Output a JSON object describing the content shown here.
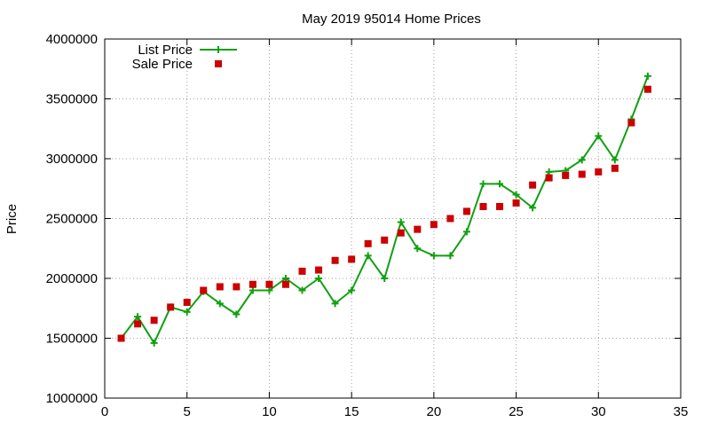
{
  "chart_data": {
    "type": "line",
    "title": "May 2019 95014 Home Prices",
    "xlabel": "",
    "ylabel": "Price",
    "xlim": [
      0,
      35
    ],
    "ylim": [
      1000000,
      4000000
    ],
    "x_ticks": [
      0,
      5,
      10,
      15,
      20,
      25,
      30,
      35
    ],
    "y_ticks": [
      1000000,
      1500000,
      2000000,
      2500000,
      3000000,
      3500000,
      4000000
    ],
    "grid": true,
    "legend_position": "top-left",
    "series": [
      {
        "name": "List Price",
        "style": "line+cross",
        "color": "#10a010",
        "points": [
          [
            1,
            1500000
          ],
          [
            2,
            1680000
          ],
          [
            3,
            1460000
          ],
          [
            4,
            1760000
          ],
          [
            5,
            1720000
          ],
          [
            6,
            1890000
          ],
          [
            7,
            1790000
          ],
          [
            8,
            1700000
          ],
          [
            9,
            1900000
          ],
          [
            10,
            1900000
          ],
          [
            11,
            2000000
          ],
          [
            12,
            1900000
          ],
          [
            13,
            2000000
          ],
          [
            14,
            1790000
          ],
          [
            15,
            1900000
          ],
          [
            16,
            2190000
          ],
          [
            17,
            2000000
          ],
          [
            18,
            2470000
          ],
          [
            19,
            2250000
          ],
          [
            20,
            2190000
          ],
          [
            21,
            2190000
          ],
          [
            22,
            2390000
          ],
          [
            23,
            2790000
          ],
          [
            24,
            2790000
          ],
          [
            25,
            2700000
          ],
          [
            26,
            2590000
          ],
          [
            27,
            2890000
          ],
          [
            28,
            2900000
          ],
          [
            29,
            2990000
          ],
          [
            30,
            3190000
          ],
          [
            31,
            2990000
          ],
          [
            32,
            3330000
          ],
          [
            33,
            3690000
          ]
        ]
      },
      {
        "name": "Sale Price",
        "style": "square",
        "color": "#cc0000",
        "points": [
          [
            1,
            1500000
          ],
          [
            2,
            1620000
          ],
          [
            3,
            1650000
          ],
          [
            4,
            1760000
          ],
          [
            5,
            1800000
          ],
          [
            6,
            1900000
          ],
          [
            7,
            1930000
          ],
          [
            8,
            1930000
          ],
          [
            9,
            1950000
          ],
          [
            10,
            1950000
          ],
          [
            11,
            1950000
          ],
          [
            12,
            2060000
          ],
          [
            13,
            2070000
          ],
          [
            14,
            2150000
          ],
          [
            15,
            2160000
          ],
          [
            16,
            2290000
          ],
          [
            17,
            2320000
          ],
          [
            18,
            2380000
          ],
          [
            19,
            2410000
          ],
          [
            20,
            2450000
          ],
          [
            21,
            2500000
          ],
          [
            22,
            2560000
          ],
          [
            23,
            2600000
          ],
          [
            24,
            2600000
          ],
          [
            25,
            2630000
          ],
          [
            26,
            2780000
          ],
          [
            27,
            2840000
          ],
          [
            28,
            2860000
          ],
          [
            29,
            2870000
          ],
          [
            30,
            2890000
          ],
          [
            31,
            2920000
          ],
          [
            32,
            3300000
          ],
          [
            33,
            3580000
          ]
        ]
      }
    ]
  }
}
